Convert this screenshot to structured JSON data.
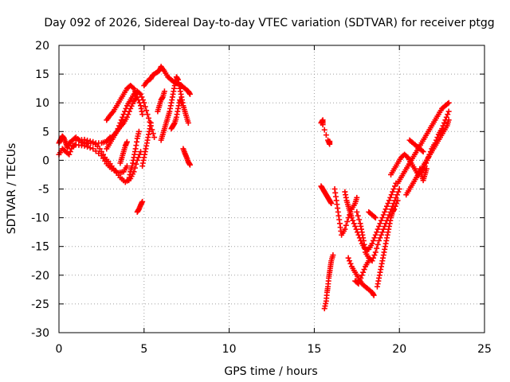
{
  "chart_data": {
    "type": "scatter",
    "title": "Day 092 of 2026, Sidereal Day-to-day VTEC variation (SDTVAR) for receiver ptgg",
    "xlabel": "GPS time / hours",
    "ylabel": "SDTVAR / TECUs",
    "xlim": [
      0,
      25
    ],
    "ylim": [
      -30,
      20
    ],
    "x_ticks": [
      0,
      5,
      10,
      15,
      20,
      25
    ],
    "y_ticks": [
      -30,
      -25,
      -20,
      -15,
      -10,
      -5,
      0,
      5,
      10,
      15,
      20
    ],
    "grid": true,
    "legend": "none",
    "marker": "plus",
    "color": "#ff0000",
    "series": [
      {
        "points": [
          [
            0.0,
            3.0
          ],
          [
            0.1,
            3.6
          ],
          [
            0.2,
            4.2
          ],
          [
            0.3,
            3.8
          ],
          [
            0.4,
            3.0
          ],
          [
            0.5,
            2.2
          ],
          [
            0.6,
            3.0
          ],
          [
            0.8,
            3.5
          ],
          [
            1.0,
            4.0
          ],
          [
            1.3,
            3.2
          ],
          [
            1.6,
            2.9
          ],
          [
            2.0,
            3.0
          ],
          [
            2.5,
            3.0
          ],
          [
            2.8,
            3.3
          ],
          [
            3.0,
            4.0
          ]
        ]
      },
      {
        "points": [
          [
            0.0,
            1.0
          ],
          [
            0.2,
            2.0
          ],
          [
            0.4,
            1.5
          ],
          [
            0.6,
            1.0
          ],
          [
            0.8,
            2.5
          ],
          [
            1.0,
            2.7
          ],
          [
            1.5,
            2.5
          ],
          [
            2.0,
            2.0
          ],
          [
            2.5,
            0.8
          ],
          [
            2.8,
            -0.6
          ],
          [
            3.1,
            -1.5
          ],
          [
            3.5,
            -2.2
          ],
          [
            3.8,
            -2.0
          ],
          [
            4.0,
            -1.0
          ]
        ]
      },
      {
        "points": [
          [
            1.0,
            3.5
          ],
          [
            1.5,
            3.6
          ],
          [
            2.0,
            3.2
          ],
          [
            2.4,
            2.0
          ],
          [
            2.7,
            0.5
          ],
          [
            3.0,
            -0.6
          ],
          [
            3.3,
            -1.8
          ],
          [
            3.6,
            -3.0
          ],
          [
            3.9,
            -3.8
          ],
          [
            4.2,
            -3.2
          ],
          [
            4.4,
            -2.0
          ],
          [
            4.6,
            0.0
          ],
          [
            4.8,
            1.5
          ]
        ]
      },
      {
        "points": [
          [
            2.8,
            7.0
          ],
          [
            3.0,
            7.8
          ],
          [
            3.2,
            8.5
          ],
          [
            3.4,
            9.5
          ],
          [
            3.6,
            10.5
          ],
          [
            3.8,
            11.5
          ],
          [
            4.0,
            12.5
          ],
          [
            4.2,
            13.0
          ],
          [
            4.4,
            12.5
          ],
          [
            4.6,
            11.0
          ],
          [
            4.8,
            9.5
          ],
          [
            4.9,
            8.0
          ]
        ]
      },
      {
        "points": [
          [
            2.8,
            2.0
          ],
          [
            3.0,
            3.0
          ],
          [
            3.2,
            4.0
          ],
          [
            3.4,
            5.0
          ],
          [
            3.6,
            6.5
          ],
          [
            3.8,
            8.0
          ],
          [
            4.0,
            9.5
          ],
          [
            4.2,
            10.5
          ],
          [
            4.4,
            11.5
          ],
          [
            4.6,
            12.0
          ],
          [
            4.8,
            11.5
          ],
          [
            5.0,
            10.0
          ],
          [
            5.2,
            8.0
          ],
          [
            5.4,
            6.0
          ],
          [
            5.6,
            4.0
          ]
        ]
      },
      {
        "points": [
          [
            3.0,
            3.5
          ],
          [
            3.2,
            4.3
          ],
          [
            3.4,
            5.0
          ],
          [
            3.6,
            5.8
          ],
          [
            3.8,
            6.5
          ],
          [
            4.0,
            7.5
          ],
          [
            4.2,
            9.0
          ],
          [
            4.4,
            10.3
          ],
          [
            4.6,
            11.0
          ]
        ]
      },
      {
        "points": [
          [
            3.6,
            -0.5
          ],
          [
            3.7,
            0.5
          ],
          [
            3.8,
            1.5
          ],
          [
            3.9,
            2.5
          ],
          [
            4.0,
            3.2
          ]
        ]
      },
      {
        "points": [
          [
            4.1,
            -3.5
          ],
          [
            4.2,
            -2.0
          ],
          [
            4.3,
            -1.0
          ],
          [
            4.4,
            0.5
          ],
          [
            4.5,
            2.0
          ],
          [
            4.6,
            3.8
          ],
          [
            4.7,
            5.0
          ]
        ]
      },
      {
        "points": [
          [
            4.9,
            -1.0
          ],
          [
            5.0,
            0.5
          ],
          [
            5.1,
            2.0
          ],
          [
            5.2,
            3.5
          ],
          [
            5.3,
            5.0
          ],
          [
            5.4,
            6.5
          ]
        ]
      },
      {
        "points": [
          [
            4.6,
            -9.0
          ],
          [
            4.7,
            -8.5
          ],
          [
            4.8,
            -7.8
          ],
          [
            4.9,
            -7.2
          ]
        ]
      },
      {
        "points": [
          [
            5.0,
            13.0
          ],
          [
            5.2,
            13.8
          ],
          [
            5.4,
            14.2
          ],
          [
            5.5,
            14.8
          ],
          [
            5.7,
            15.2
          ],
          [
            5.9,
            15.6
          ],
          [
            6.0,
            16.3
          ],
          [
            6.2,
            15.5
          ],
          [
            6.4,
            14.5
          ],
          [
            6.6,
            14.0
          ],
          [
            6.8,
            13.5
          ],
          [
            7.0,
            13.3
          ],
          [
            7.2,
            13.0
          ],
          [
            7.4,
            12.5
          ],
          [
            7.6,
            12.0
          ],
          [
            7.7,
            11.5
          ]
        ]
      },
      {
        "points": [
          [
            6.0,
            3.5
          ],
          [
            6.1,
            4.5
          ],
          [
            6.2,
            5.5
          ],
          [
            6.3,
            6.5
          ],
          [
            6.4,
            7.5
          ],
          [
            6.5,
            8.5
          ],
          [
            6.6,
            10.0
          ],
          [
            6.7,
            11.5
          ],
          [
            6.8,
            13.0
          ],
          [
            6.9,
            14.5
          ],
          [
            7.0,
            14.0
          ],
          [
            7.1,
            12.5
          ],
          [
            7.2,
            11.0
          ],
          [
            7.3,
            9.5
          ],
          [
            7.4,
            8.5
          ],
          [
            7.5,
            7.5
          ],
          [
            7.6,
            6.5
          ]
        ]
      },
      {
        "points": [
          [
            6.6,
            5.5
          ],
          [
            6.7,
            6.0
          ],
          [
            6.8,
            6.5
          ],
          [
            6.9,
            7.5
          ],
          [
            7.0,
            9.0
          ],
          [
            7.1,
            10.5
          ],
          [
            7.2,
            10.0
          ]
        ]
      },
      {
        "points": [
          [
            7.3,
            2.0
          ],
          [
            7.4,
            1.2
          ],
          [
            7.5,
            0.5
          ],
          [
            7.6,
            -0.3
          ],
          [
            7.7,
            -0.8
          ]
        ]
      },
      {
        "points": [
          [
            5.8,
            8.5
          ],
          [
            5.9,
            9.5
          ],
          [
            6.0,
            10.5
          ],
          [
            6.1,
            11.0
          ],
          [
            6.2,
            12.0
          ]
        ]
      },
      {
        "points": [
          [
            15.4,
            6.5
          ],
          [
            15.5,
            7.0
          ],
          [
            15.5,
            6.2
          ],
          [
            15.8,
            3.5
          ],
          [
            15.9,
            2.8
          ],
          [
            15.9,
            3.3
          ]
        ]
      },
      {
        "points": [
          [
            15.4,
            -4.5
          ],
          [
            15.5,
            -5.0
          ],
          [
            15.6,
            -5.5
          ],
          [
            15.7,
            -6.0
          ],
          [
            15.8,
            -6.5
          ],
          [
            15.9,
            -7.0
          ],
          [
            16.0,
            -7.5
          ]
        ]
      },
      {
        "points": [
          [
            15.6,
            -25.8
          ],
          [
            15.7,
            -24.5
          ],
          [
            15.75,
            -23.0
          ],
          [
            15.8,
            -22.0
          ],
          [
            15.85,
            -20.5
          ],
          [
            15.9,
            -19.5
          ],
          [
            15.95,
            -18.5
          ],
          [
            16.0,
            -17.5
          ],
          [
            16.1,
            -16.5
          ]
        ]
      },
      {
        "points": [
          [
            16.2,
            -5.0
          ],
          [
            16.3,
            -7.0
          ],
          [
            16.4,
            -9.0
          ],
          [
            16.5,
            -11.0
          ],
          [
            16.6,
            -13.0
          ],
          [
            16.8,
            -12.0
          ],
          [
            17.0,
            -10.0
          ],
          [
            17.2,
            -8.5
          ],
          [
            17.4,
            -7.5
          ],
          [
            17.5,
            -6.5
          ]
        ]
      },
      {
        "points": [
          [
            16.8,
            -5.5
          ],
          [
            16.9,
            -7.0
          ],
          [
            17.0,
            -8.0
          ],
          [
            17.1,
            -9.0
          ],
          [
            17.2,
            -10.0
          ],
          [
            17.4,
            -11.5
          ],
          [
            17.6,
            -13.0
          ],
          [
            17.8,
            -14.5
          ],
          [
            18.0,
            -15.5
          ],
          [
            18.2,
            -15.5
          ],
          [
            18.4,
            -14.5
          ],
          [
            18.6,
            -13.0
          ],
          [
            18.8,
            -11.5
          ],
          [
            19.0,
            -10.0
          ],
          [
            19.2,
            -8.5
          ],
          [
            19.4,
            -7.0
          ],
          [
            19.6,
            -5.5
          ],
          [
            19.8,
            -4.0
          ]
        ]
      },
      {
        "points": [
          [
            17.5,
            -9.0
          ],
          [
            17.7,
            -11.0
          ],
          [
            17.8,
            -12.5
          ],
          [
            17.9,
            -14.0
          ],
          [
            18.0,
            -16.0
          ],
          [
            18.2,
            -17.0
          ],
          [
            18.4,
            -17.5
          ],
          [
            18.6,
            -16.0
          ],
          [
            18.8,
            -14.0
          ],
          [
            19.0,
            -12.5
          ],
          [
            19.2,
            -11.0
          ],
          [
            19.4,
            -9.5
          ],
          [
            19.6,
            -8.0
          ],
          [
            19.8,
            -6.5
          ],
          [
            20.0,
            -5.0
          ]
        ]
      },
      {
        "points": [
          [
            17.0,
            -17.0
          ],
          [
            17.2,
            -18.5
          ],
          [
            17.4,
            -19.5
          ],
          [
            17.6,
            -20.5
          ],
          [
            17.8,
            -21.5
          ],
          [
            18.0,
            -22.0
          ],
          [
            18.2,
            -22.5
          ],
          [
            18.4,
            -23.0
          ],
          [
            18.5,
            -23.5
          ]
        ]
      },
      {
        "points": [
          [
            17.4,
            -21.0
          ],
          [
            17.6,
            -21.5
          ],
          [
            17.8,
            -20.0
          ],
          [
            18.0,
            -18.5
          ],
          [
            18.2,
            -17.5
          ]
        ]
      },
      {
        "points": [
          [
            18.7,
            -22.0
          ],
          [
            18.8,
            -20.5
          ],
          [
            18.9,
            -19.0
          ],
          [
            19.0,
            -17.5
          ],
          [
            19.1,
            -16.0
          ],
          [
            19.2,
            -14.5
          ],
          [
            19.3,
            -13.0
          ],
          [
            19.4,
            -11.5
          ],
          [
            19.5,
            -10.0
          ],
          [
            19.6,
            -9.0
          ],
          [
            19.7,
            -8.5
          ],
          [
            19.9,
            -7.0
          ]
        ]
      },
      {
        "points": [
          [
            18.2,
            -9.0
          ],
          [
            18.4,
            -9.5
          ],
          [
            18.6,
            -10.0
          ]
        ]
      },
      {
        "points": [
          [
            19.5,
            -2.5
          ],
          [
            19.7,
            -1.5
          ],
          [
            19.9,
            -0.5
          ],
          [
            20.1,
            0.5
          ],
          [
            20.3,
            1.0
          ],
          [
            20.5,
            0.5
          ],
          [
            20.7,
            -0.5
          ],
          [
            20.9,
            -1.5
          ],
          [
            21.1,
            -2.5
          ],
          [
            21.3,
            -2.0
          ],
          [
            21.5,
            -1.0
          ],
          [
            21.7,
            0.5
          ],
          [
            21.9,
            2.0
          ],
          [
            22.1,
            3.0
          ],
          [
            22.3,
            4.5
          ],
          [
            22.5,
            5.5
          ],
          [
            22.7,
            7.0
          ],
          [
            22.9,
            8.5
          ]
        ]
      },
      {
        "points": [
          [
            19.9,
            -4.0
          ],
          [
            20.1,
            -3.0
          ],
          [
            20.3,
            -2.0
          ],
          [
            20.5,
            -1.0
          ],
          [
            20.7,
            0.0
          ],
          [
            20.9,
            1.0
          ],
          [
            21.1,
            2.0
          ],
          [
            21.3,
            3.0
          ],
          [
            21.5,
            4.0
          ],
          [
            21.7,
            5.0
          ],
          [
            21.9,
            6.0
          ],
          [
            22.1,
            7.0
          ],
          [
            22.3,
            8.0
          ],
          [
            22.5,
            9.0
          ],
          [
            22.7,
            9.5
          ],
          [
            22.9,
            10.0
          ]
        ]
      },
      {
        "points": [
          [
            20.4,
            -6.0
          ],
          [
            20.6,
            -5.0
          ],
          [
            20.8,
            -4.0
          ],
          [
            21.0,
            -3.0
          ],
          [
            21.2,
            -2.0
          ],
          [
            21.4,
            -1.0
          ],
          [
            21.6,
            0.0
          ],
          [
            21.8,
            1.0
          ],
          [
            22.0,
            2.0
          ],
          [
            22.2,
            3.0
          ],
          [
            22.4,
            4.0
          ],
          [
            22.6,
            5.0
          ],
          [
            22.8,
            6.0
          ],
          [
            22.9,
            7.0
          ]
        ]
      },
      {
        "points": [
          [
            20.6,
            3.5
          ],
          [
            20.8,
            3.0
          ],
          [
            21.0,
            2.5
          ],
          [
            21.2,
            2.0
          ],
          [
            21.4,
            1.5
          ]
        ]
      },
      {
        "points": [
          [
            21.2,
            -1.5
          ],
          [
            21.3,
            -2.5
          ],
          [
            21.4,
            -3.5
          ],
          [
            21.5,
            -2.5
          ],
          [
            21.6,
            -1.5
          ]
        ]
      }
    ]
  }
}
